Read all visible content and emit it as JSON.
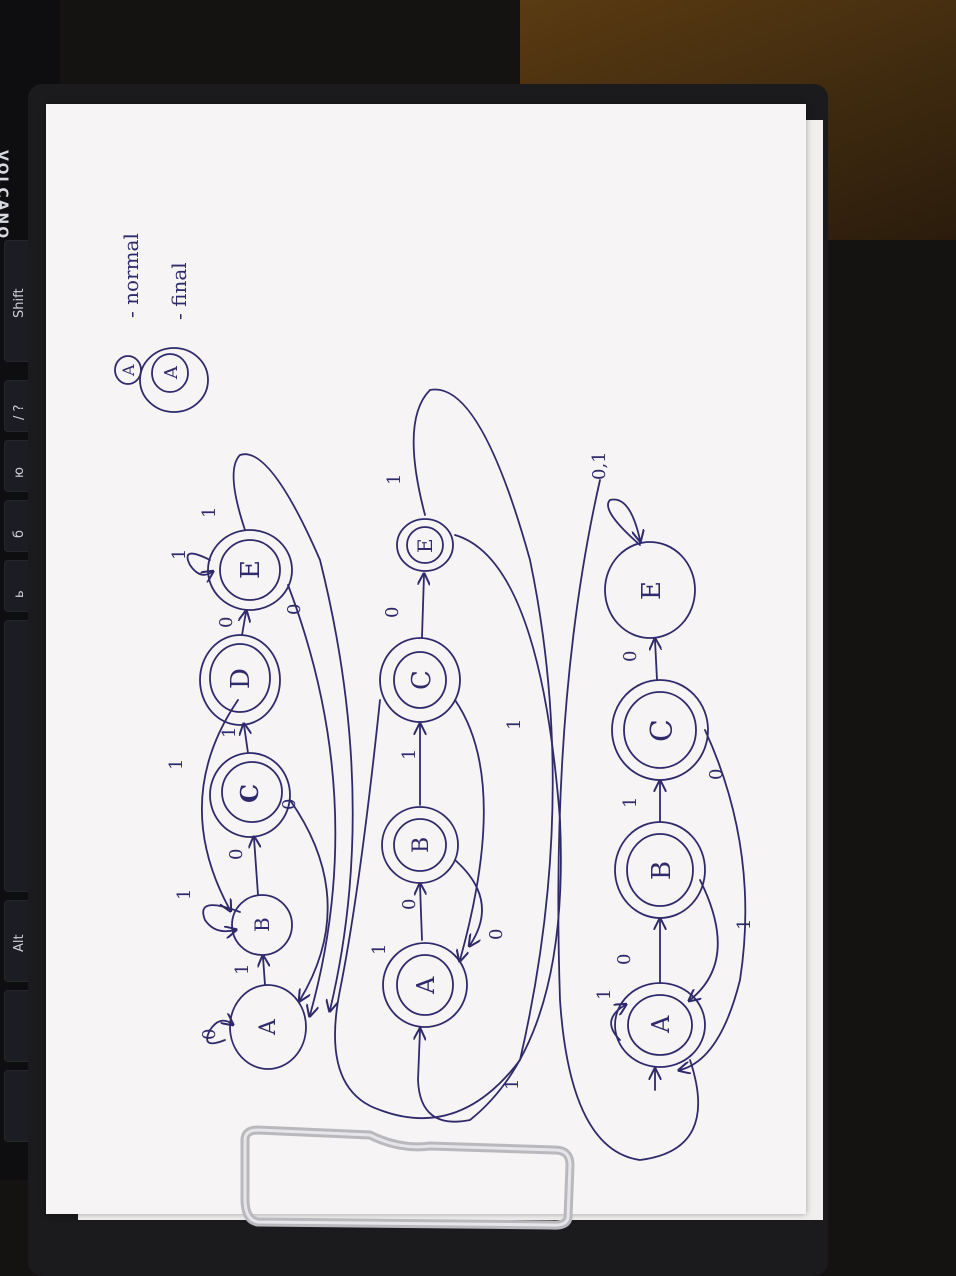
{
  "keyboard": {
    "brand": "VOLCANO",
    "keys": [
      "Shift",
      "Alt",
      "ю",
      "б",
      "ь",
      "/ ?"
    ]
  },
  "legend": {
    "normal_symbol": "A",
    "normal_label": "- normal",
    "final_symbol": "A",
    "final_label": "- final"
  },
  "diagram1": {
    "states": [
      "A",
      "B",
      "C",
      "D",
      "E"
    ],
    "transitions": [
      "0",
      "1",
      "1",
      "0",
      "1",
      "0",
      "1",
      "0",
      "1",
      "0",
      "1"
    ]
  },
  "diagram2": {
    "states": [
      "A",
      "B",
      "C",
      "E"
    ],
    "transitions": [
      "1",
      "0",
      "1",
      "0",
      "1",
      "0",
      "1",
      "1"
    ]
  },
  "diagram3": {
    "states": [
      "A",
      "B",
      "C",
      "E"
    ],
    "transitions": [
      "1",
      "0",
      "1",
      "0",
      "1",
      "0",
      "0,1"
    ]
  },
  "colors": {
    "ink": "#2f2a6b",
    "paper": "#f6f4f4",
    "background": "#151312"
  }
}
